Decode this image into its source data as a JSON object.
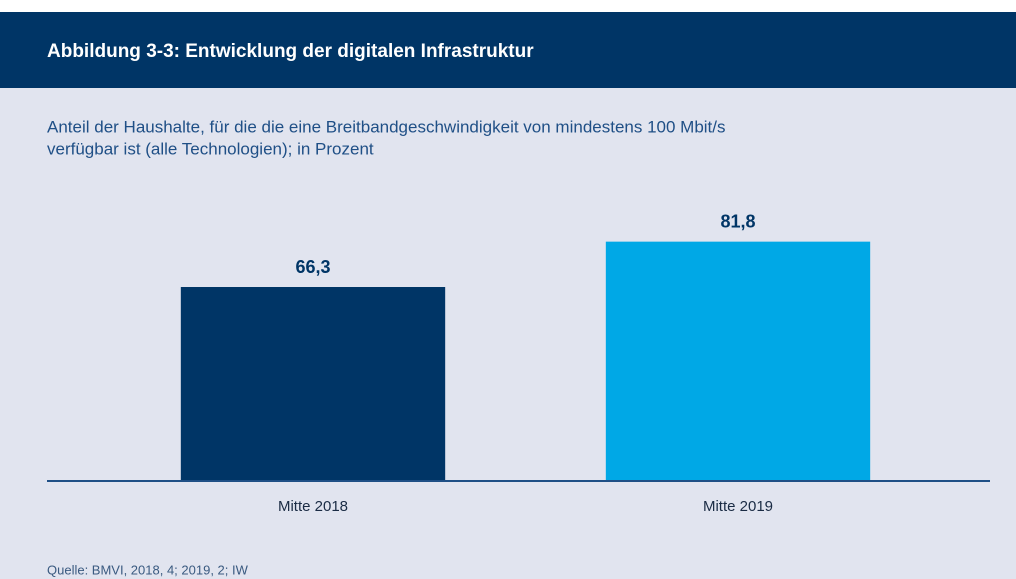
{
  "chart_data": {
    "type": "bar",
    "title": "Abbildung 3-3: Entwicklung der digitalen Infrastruktur",
    "subtitle": [
      "Anteil der Haushalte, für die die eine Breitbandgeschwindigkeit von mindestens 100 Mbit/s",
      "verfügbar ist (alle Technologien); in Prozent"
    ],
    "categories": [
      "Mitte 2018",
      "Mitte 2019"
    ],
    "values": [
      66.3,
      81.8
    ],
    "value_labels": [
      "66,3",
      "81,8"
    ],
    "colors": [
      "#003566",
      "#00a8e6"
    ],
    "ylim": [
      0,
      100
    ],
    "source": "Quelle: BMVI, 2018, 4; 2019, 2; IW"
  }
}
